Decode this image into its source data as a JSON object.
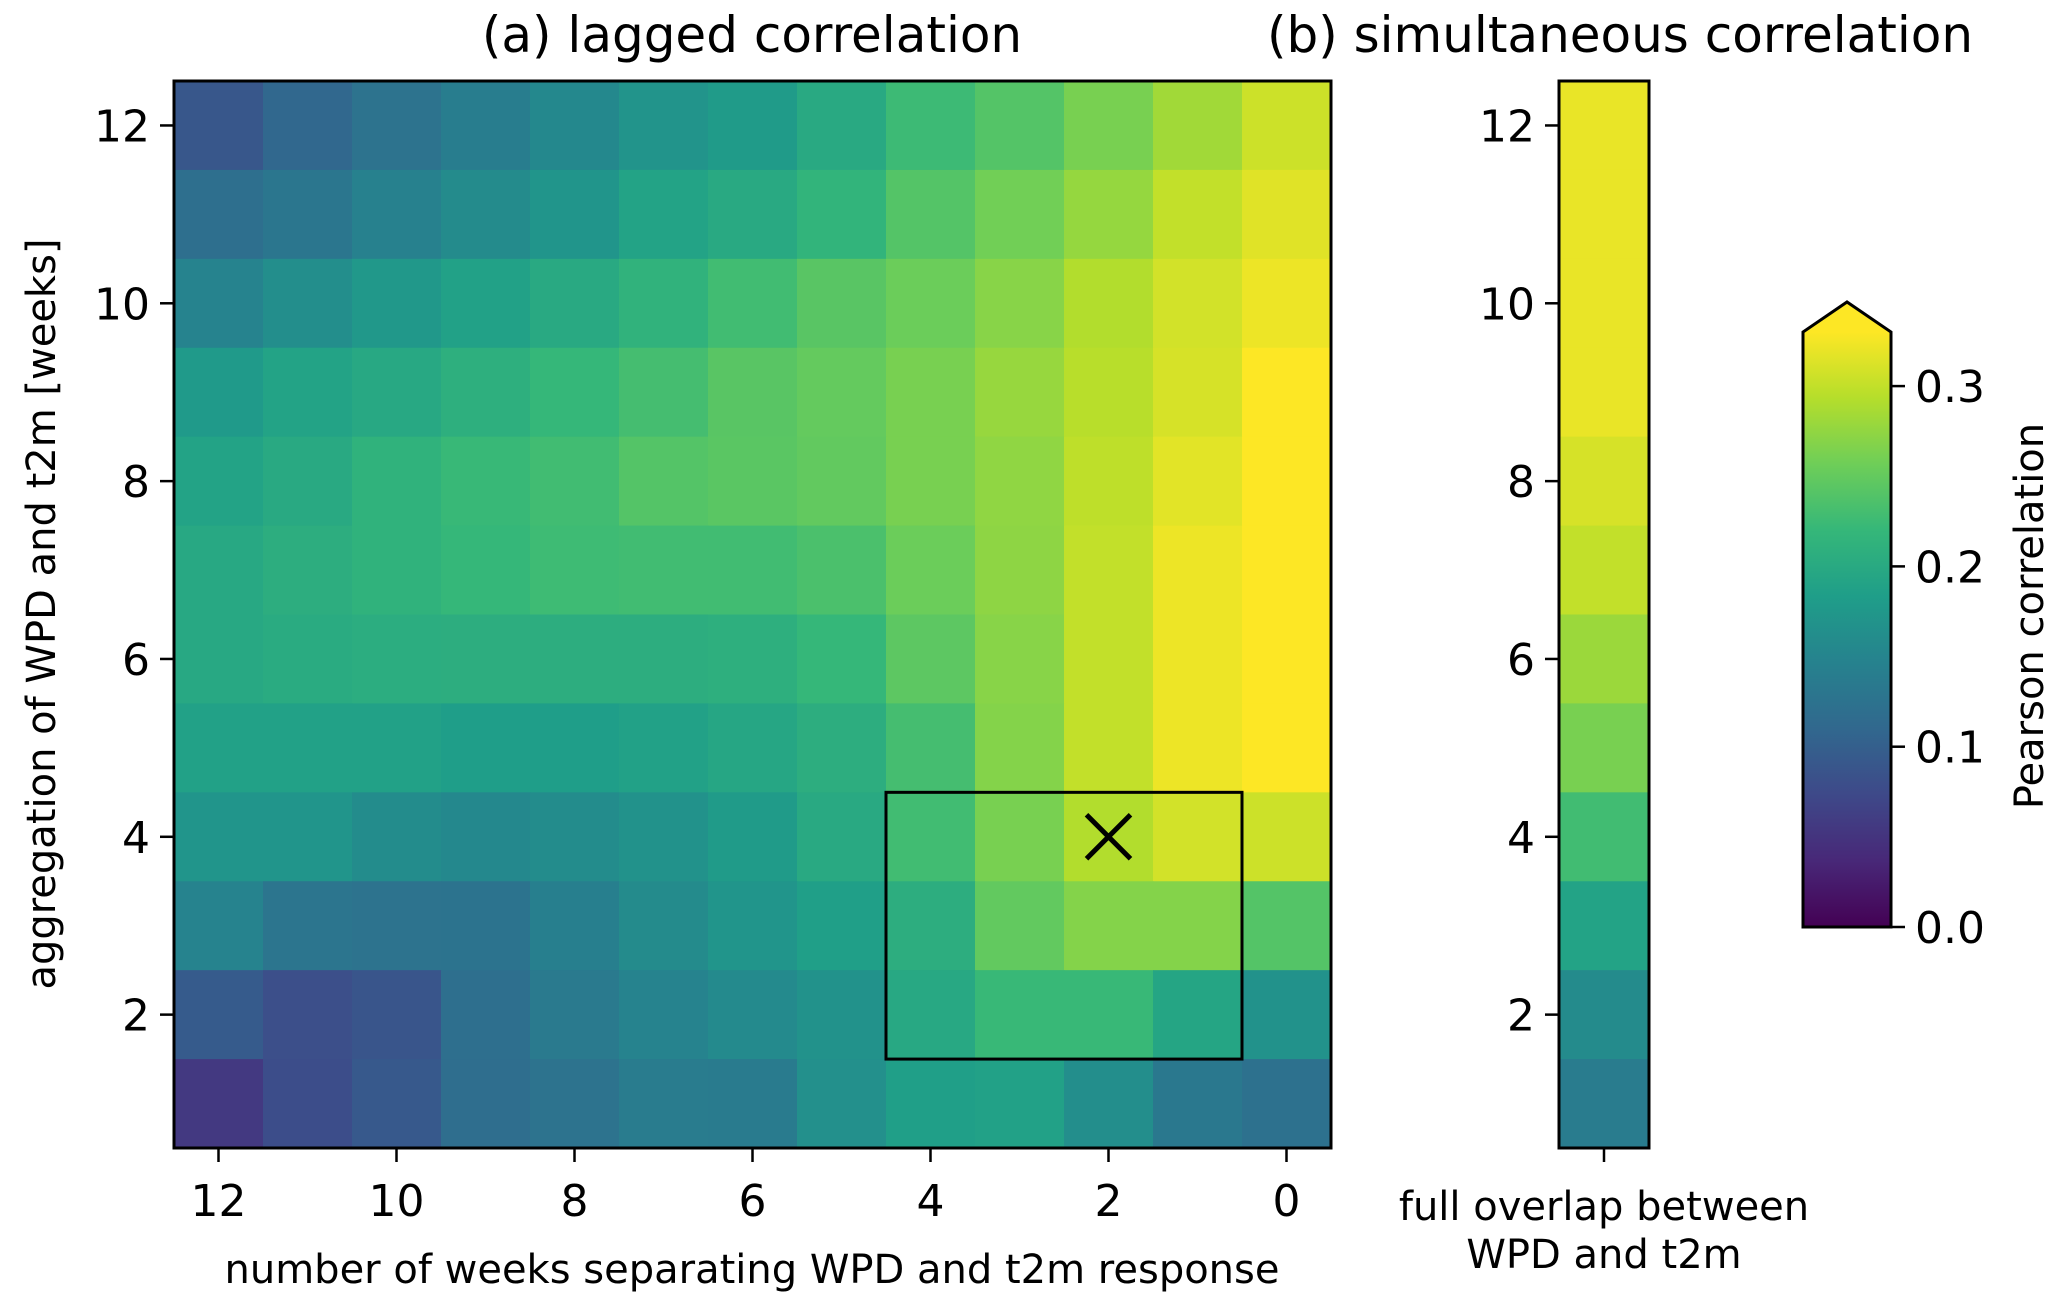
{
  "chart_data": [
    {
      "id": "panel_a",
      "type": "heatmap",
      "title": "(a) lagged correlation",
      "xlabel": "number of weeks separating WPD and t2m response",
      "ylabel": "aggregation of WPD and t2m [weeks]",
      "x": [
        12,
        11,
        10,
        9,
        8,
        7,
        6,
        5,
        4,
        3,
        2,
        1,
        0
      ],
      "x_ticks": [
        12,
        10,
        8,
        6,
        4,
        2,
        0
      ],
      "x_tick_labels": [
        "12",
        "10",
        "8",
        "6",
        "4",
        "2",
        "0"
      ],
      "x_inverted": true,
      "y": [
        12,
        11,
        10,
        9,
        8,
        7,
        6,
        5,
        4,
        3,
        2,
        1
      ],
      "y_ticks": [
        12,
        10,
        8,
        6,
        4,
        2
      ],
      "y_tick_labels": [
        "12",
        "10",
        "8",
        "6",
        "4",
        "2"
      ],
      "xlim": [
        12.5,
        -0.5
      ],
      "ylim": [
        0.5,
        12.5
      ],
      "grid": false,
      "values": [
        [
          0.09,
          0.11,
          0.125,
          0.14,
          0.155,
          0.17,
          0.18,
          0.2,
          0.225,
          0.24,
          0.262,
          0.283,
          0.305
        ],
        [
          0.12,
          0.13,
          0.145,
          0.158,
          0.172,
          0.19,
          0.2,
          0.215,
          0.24,
          0.258,
          0.277,
          0.3,
          0.315
        ],
        [
          0.148,
          0.162,
          0.175,
          0.188,
          0.2,
          0.213,
          0.228,
          0.243,
          0.255,
          0.27,
          0.292,
          0.308,
          0.322
        ],
        [
          0.178,
          0.19,
          0.198,
          0.208,
          0.22,
          0.23,
          0.243,
          0.25,
          0.262,
          0.278,
          0.295,
          0.31,
          0.33
        ],
        [
          0.19,
          0.2,
          0.212,
          0.222,
          0.228,
          0.24,
          0.244,
          0.249,
          0.262,
          0.274,
          0.298,
          0.316,
          0.33
        ],
        [
          0.198,
          0.206,
          0.212,
          0.22,
          0.226,
          0.228,
          0.228,
          0.234,
          0.255,
          0.273,
          0.3,
          0.322,
          0.33
        ],
        [
          0.198,
          0.202,
          0.205,
          0.206,
          0.206,
          0.206,
          0.208,
          0.22,
          0.246,
          0.27,
          0.3,
          0.322,
          0.33
        ],
        [
          0.188,
          0.188,
          0.188,
          0.183,
          0.183,
          0.188,
          0.195,
          0.206,
          0.23,
          0.268,
          0.3,
          0.322,
          0.33
        ],
        [
          0.172,
          0.172,
          0.16,
          0.155,
          0.16,
          0.168,
          0.18,
          0.2,
          0.228,
          0.262,
          0.292,
          0.308,
          0.305
        ],
        [
          0.148,
          0.128,
          0.125,
          0.126,
          0.142,
          0.158,
          0.172,
          0.185,
          0.206,
          0.249,
          0.268,
          0.268,
          0.24
        ],
        [
          0.095,
          0.08,
          0.088,
          0.12,
          0.135,
          0.148,
          0.157,
          0.168,
          0.198,
          0.222,
          0.222,
          0.194,
          0.167
        ],
        [
          0.055,
          0.078,
          0.092,
          0.118,
          0.125,
          0.138,
          0.137,
          0.165,
          0.185,
          0.188,
          0.162,
          0.133,
          0.123
        ]
      ],
      "annotations": [
        {
          "type": "rectangle",
          "x_range": [
            4.5,
            0.5
          ],
          "y_range": [
            1.5,
            4.5
          ],
          "color": "#000000"
        },
        {
          "type": "marker",
          "symbol": "x",
          "x": 2,
          "y": 4,
          "color": "#000000"
        }
      ]
    },
    {
      "id": "panel_b",
      "type": "heatmap",
      "title": "(b) simultaneous correlation",
      "xlabel": "full overlap between\nWPD and t2m",
      "xlabel_lines": [
        "full overlap between",
        "WPD and t2m"
      ],
      "ylabel": "",
      "x": [
        "full overlap"
      ],
      "y": [
        12,
        11,
        10,
        9,
        8,
        7,
        6,
        5,
        4,
        3,
        2,
        1
      ],
      "y_ticks": [
        12,
        10,
        8,
        6,
        4,
        2
      ],
      "y_tick_labels": [
        "12",
        "10",
        "8",
        "6",
        "4",
        "2"
      ],
      "ylim": [
        0.5,
        12.5
      ],
      "grid": false,
      "values": [
        0.32,
        0.32,
        0.32,
        0.32,
        0.31,
        0.3,
        0.28,
        0.262,
        0.228,
        0.19,
        0.158,
        0.138
      ]
    }
  ],
  "colorbar": {
    "label": "Pearson correlation",
    "colormap": "viridis",
    "vmin": 0.0,
    "vmax": 0.33,
    "extend": "max",
    "ticks": [
      0.0,
      0.1,
      0.2,
      0.3
    ],
    "tick_labels": [
      "0.0",
      "0.1",
      "0.2",
      "0.3"
    ]
  },
  "colors": {
    "viridis_stops": [
      "#440154",
      "#482878",
      "#3e4989",
      "#31688e",
      "#26828e",
      "#1f9e89",
      "#35b779",
      "#6ece58",
      "#b5de2b",
      "#fde725"
    ],
    "annotation": "#000000"
  }
}
